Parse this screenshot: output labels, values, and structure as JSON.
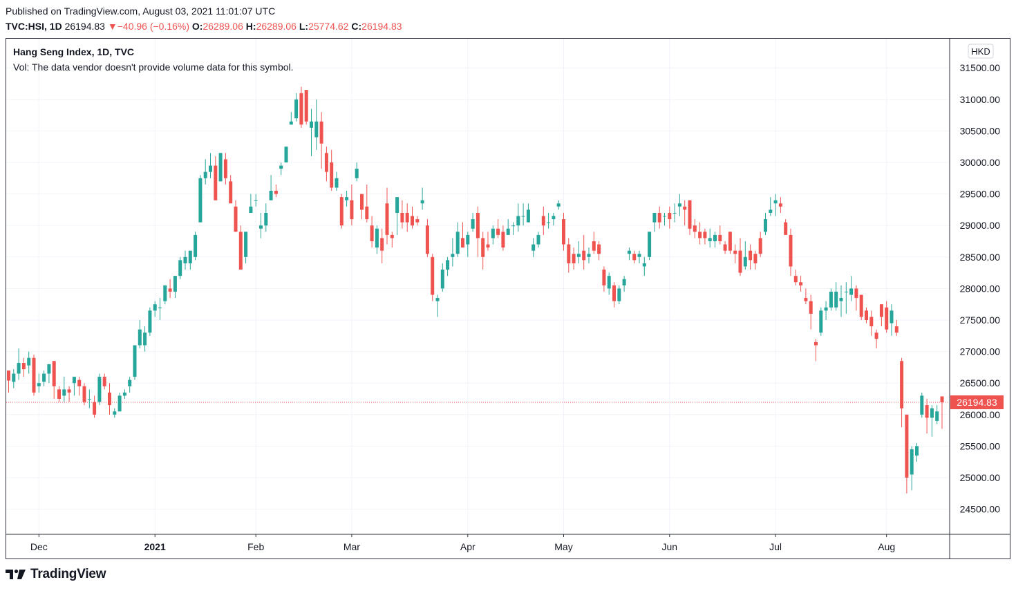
{
  "header": {
    "published": "Published on TradingView.com, August 03, 2021 11:01:07 UTC",
    "symbol": "TVC:HSI, 1D",
    "last": "26194.83",
    "arrow": "▼",
    "change": "−40.96 (−0.16%)",
    "o_label": "O:",
    "o_value": "26289.06",
    "h_label": "H:",
    "h_value": "26289.06",
    "l_label": "L:",
    "l_value": "25774.62",
    "c_label": "C:",
    "c_value": "26194.83"
  },
  "legend": {
    "title": "Hang Seng Index, 1D, TVC",
    "vol": "Vol: The data vendor doesn't provide volume data for this symbol."
  },
  "footer": {
    "logo_text": "TradingView",
    "logo_icon": "tradingview-logo-icon"
  },
  "colors": {
    "up": "#26a69a",
    "down": "#ef5350",
    "grid": "#f0f3fa",
    "axis": "#2a2e39",
    "last_price": "#ef5350"
  },
  "chart_data": {
    "type": "candlestick",
    "title": "Hang Seng Index, 1D, TVC",
    "currency": "HKD",
    "ylim": [
      24150,
      31850
    ],
    "y_ticks": [
      24500,
      25000,
      25500,
      26000,
      26500,
      27000,
      27500,
      28000,
      28500,
      29000,
      29500,
      30000,
      30500,
      31000,
      31500
    ],
    "y_tick_labels": [
      "24500.00",
      "25000.00",
      "25500.00",
      "26000.00",
      "26500.00",
      "27000.00",
      "27500.00",
      "28000.00",
      "28500.00",
      "29000.00",
      "29500.00",
      "30000.00",
      "30500.00",
      "31000.00",
      "31500.00"
    ],
    "x_ticks": [
      {
        "label": "Dec",
        "bold": false,
        "bar": 6
      },
      {
        "label": "2021",
        "bold": true,
        "bar": 29
      },
      {
        "label": "Feb",
        "bold": false,
        "bar": 49
      },
      {
        "label": "Mar",
        "bold": false,
        "bar": 68
      },
      {
        "label": "Apr",
        "bold": false,
        "bar": 91
      },
      {
        "label": "May",
        "bold": false,
        "bar": 110
      },
      {
        "label": "Jun",
        "bold": false,
        "bar": 131
      },
      {
        "label": "Jul",
        "bold": false,
        "bar": 152
      },
      {
        "label": "Aug",
        "bold": false,
        "bar": 174
      }
    ],
    "last_price": 26194.83,
    "last_price_label": "26194.83",
    "grid": true,
    "candles": [
      [
        26700,
        26700,
        26350,
        26540
      ],
      [
        26520,
        26720,
        26420,
        26650
      ],
      [
        26650,
        27050,
        26550,
        26820
      ],
      [
        26820,
        26900,
        26600,
        26720
      ],
      [
        26780,
        27000,
        26650,
        26900
      ],
      [
        26900,
        26950,
        26300,
        26350
      ],
      [
        26450,
        26650,
        26350,
        26500
      ],
      [
        26520,
        26700,
        26450,
        26650
      ],
      [
        26650,
        26800,
        26500,
        26800
      ],
      [
        26850,
        26850,
        26250,
        26450
      ],
      [
        26400,
        26450,
        26200,
        26250
      ],
      [
        26300,
        26600,
        26200,
        26400
      ],
      [
        26400,
        26450,
        26200,
        26350
      ],
      [
        26500,
        26600,
        26300,
        26600
      ],
      [
        26550,
        26600,
        26300,
        26450
      ],
      [
        26450,
        26500,
        26150,
        26200
      ],
      [
        26250,
        26400,
        26100,
        26250
      ],
      [
        26200,
        26300,
        25950,
        26000
      ],
      [
        26200,
        26650,
        26150,
        26600
      ],
      [
        26600,
        26650,
        26400,
        26450
      ],
      [
        26350,
        26500,
        26000,
        26150
      ],
      [
        26000,
        26100,
        25950,
        26050
      ],
      [
        26050,
        26350,
        26050,
        26300
      ],
      [
        26300,
        26400,
        26250,
        26350
      ],
      [
        26450,
        26600,
        26350,
        26550
      ],
      [
        26600,
        27100,
        26550,
        27100
      ],
      [
        27100,
        27500,
        27050,
        27350
      ],
      [
        27100,
        27400,
        27000,
        27300
      ],
      [
        27300,
        27700,
        27250,
        27650
      ],
      [
        27650,
        27800,
        27550,
        27750
      ],
      [
        27700,
        27850,
        27500,
        27700
      ],
      [
        27800,
        28050,
        27750,
        28050
      ],
      [
        28000,
        28150,
        27850,
        27950
      ],
      [
        27950,
        28200,
        27850,
        28200
      ],
      [
        28200,
        28500,
        28150,
        28450
      ],
      [
        28400,
        28600,
        28300,
        28500
      ],
      [
        28400,
        28550,
        28300,
        28600
      ],
      [
        28500,
        28900,
        28450,
        28850
      ],
      [
        29050,
        29800,
        29050,
        29750
      ],
      [
        29750,
        30050,
        29650,
        29850
      ],
      [
        29850,
        30150,
        29750,
        29950
      ],
      [
        29950,
        30100,
        29400,
        29400
      ],
      [
        29700,
        30150,
        29700,
        30150
      ],
      [
        30050,
        30150,
        29650,
        29750
      ],
      [
        29700,
        29800,
        29400,
        29350
      ],
      [
        29300,
        29400,
        28900,
        28900
      ],
      [
        28900,
        29000,
        28300,
        28300
      ],
      [
        28500,
        28900,
        28400,
        28900
      ],
      [
        29200,
        29500,
        29200,
        29300
      ],
      [
        29400,
        29500,
        29300,
        29400
      ],
      [
        28950,
        29200,
        28800,
        29000
      ],
      [
        29000,
        29350,
        28900,
        29200
      ],
      [
        29400,
        29800,
        29400,
        29550
      ],
      [
        29550,
        29650,
        29450,
        29500
      ],
      [
        29900,
        30000,
        29800,
        29950
      ],
      [
        30000,
        30250,
        30000,
        30250
      ],
      [
        30600,
        30800,
        30600,
        30650
      ],
      [
        30700,
        31100,
        30650,
        31000
      ],
      [
        31100,
        31200,
        30550,
        30600
      ],
      [
        31150,
        31150,
        30600,
        30650
      ],
      [
        30550,
        30850,
        30100,
        30650
      ],
      [
        30400,
        31000,
        30200,
        30650
      ],
      [
        30650,
        30800,
        29900,
        30300
      ],
      [
        30150,
        30250,
        29700,
        29850
      ],
      [
        30000,
        30200,
        29550,
        29600
      ],
      [
        29600,
        29850,
        29550,
        29750
      ],
      [
        29450,
        29500,
        28950,
        29000
      ],
      [
        29400,
        29550,
        29300,
        29450
      ],
      [
        29400,
        29650,
        29000,
        29100
      ],
      [
        29750,
        30000,
        29700,
        29900
      ],
      [
        29500,
        29500,
        29100,
        29250
      ],
      [
        29300,
        29650,
        29050,
        29100
      ],
      [
        29000,
        29150,
        28650,
        28750
      ],
      [
        28650,
        29000,
        28550,
        28950
      ],
      [
        28800,
        28950,
        28400,
        28600
      ],
      [
        29350,
        29600,
        28700,
        28850
      ],
      [
        28850,
        28900,
        28650,
        28800
      ],
      [
        29200,
        29450,
        28850,
        29450
      ],
      [
        29200,
        29400,
        28950,
        29050
      ],
      [
        29200,
        29350,
        28900,
        29050
      ],
      [
        29150,
        29300,
        28950,
        29000
      ],
      [
        29100,
        29150,
        29000,
        29050
      ],
      [
        29350,
        29600,
        29250,
        29400
      ],
      [
        29000,
        29100,
        28500,
        28550
      ],
      [
        28500,
        28550,
        27800,
        27900
      ],
      [
        27800,
        27900,
        27550,
        27850
      ],
      [
        28000,
        28400,
        27950,
        28300
      ],
      [
        28300,
        28500,
        28200,
        28450
      ],
      [
        28500,
        28800,
        28350,
        28550
      ],
      [
        28550,
        29050,
        28500,
        28900
      ],
      [
        28800,
        29050,
        28650,
        28650
      ],
      [
        28700,
        28900,
        28500,
        28850
      ],
      [
        28950,
        29200,
        28900,
        29100
      ],
      [
        29200,
        29300,
        28500,
        28800
      ],
      [
        28800,
        28900,
        28300,
        28500
      ],
      [
        28700,
        28900,
        28600,
        28650
      ],
      [
        28800,
        29000,
        28700,
        28950
      ],
      [
        28950,
        29100,
        28800,
        28850
      ],
      [
        28900,
        29000,
        28600,
        28650
      ],
      [
        28850,
        29100,
        28850,
        28950
      ],
      [
        29000,
        29050,
        28850,
        29000
      ],
      [
        29000,
        29350,
        28900,
        29150
      ],
      [
        29150,
        29350,
        29000,
        29150
      ],
      [
        29050,
        29350,
        29050,
        29250
      ],
      [
        28600,
        28800,
        28500,
        28700
      ],
      [
        28700,
        28900,
        28650,
        28850
      ],
      [
        29150,
        29300,
        28850,
        29000
      ],
      [
        29050,
        29200,
        28950,
        29050
      ],
      [
        29100,
        29200,
        29000,
        29150
      ],
      [
        29300,
        29400,
        29250,
        29350
      ],
      [
        29100,
        29200,
        28600,
        28700
      ],
      [
        28700,
        28800,
        28250,
        28400
      ],
      [
        28550,
        28650,
        28300,
        28400
      ],
      [
        28500,
        28750,
        28400,
        28550
      ],
      [
        28600,
        28850,
        28300,
        28450
      ],
      [
        28500,
        28650,
        28400,
        28550
      ],
      [
        28750,
        28900,
        28550,
        28600
      ],
      [
        28700,
        28750,
        28450,
        28550
      ],
      [
        28300,
        28350,
        27950,
        28050
      ],
      [
        28000,
        28250,
        27900,
        28200
      ],
      [
        28050,
        28100,
        27700,
        27800
      ],
      [
        27800,
        28050,
        27750,
        28000
      ],
      [
        28050,
        28200,
        27950,
        28150
      ],
      [
        28550,
        28650,
        28450,
        28600
      ],
      [
        28550,
        28600,
        28400,
        28450
      ],
      [
        28500,
        28600,
        28400,
        28550
      ],
      [
        28350,
        28500,
        28200,
        28400
      ],
      [
        28500,
        28900,
        28450,
        28900
      ],
      [
        29050,
        29200,
        28900,
        29200
      ],
      [
        29200,
        29300,
        28950,
        29050
      ],
      [
        29150,
        29200,
        29000,
        29150
      ],
      [
        29200,
        29300,
        28950,
        29100
      ],
      [
        29200,
        29350,
        29050,
        29200
      ],
      [
        29300,
        29500,
        29150,
        29350
      ],
      [
        29300,
        29400,
        29000,
        29250
      ],
      [
        29400,
        29400,
        28850,
        28950
      ],
      [
        29000,
        29100,
        28800,
        28900
      ],
      [
        28900,
        29050,
        28700,
        28800
      ],
      [
        28900,
        28950,
        28700,
        28800
      ],
      [
        28750,
        28950,
        28650,
        28800
      ],
      [
        28750,
        28900,
        28650,
        28850
      ],
      [
        28850,
        29000,
        28700,
        28750
      ],
      [
        28700,
        28750,
        28550,
        28600
      ],
      [
        28900,
        28900,
        28550,
        28600
      ],
      [
        28600,
        28700,
        28400,
        28550
      ],
      [
        28600,
        28800,
        28200,
        28250
      ],
      [
        28350,
        28750,
        28300,
        28500
      ],
      [
        28600,
        28700,
        28300,
        28450
      ],
      [
        28550,
        28600,
        28300,
        28400
      ],
      [
        28800,
        28900,
        28500,
        28550
      ],
      [
        28900,
        29200,
        28850,
        29100
      ],
      [
        29200,
        29450,
        29150,
        29250
      ],
      [
        29350,
        29500,
        29150,
        29400
      ],
      [
        29350,
        29450,
        29200,
        29300
      ],
      [
        29050,
        29100,
        28850,
        28850
      ],
      [
        28850,
        28950,
        28200,
        28350
      ],
      [
        28200,
        28300,
        28050,
        28100
      ],
      [
        28100,
        28200,
        27950,
        28050
      ],
      [
        27850,
        28000,
        27750,
        27800
      ],
      [
        27800,
        27900,
        27350,
        27600
      ],
      [
        27150,
        27200,
        26850,
        27100
      ],
      [
        27300,
        27700,
        27250,
        27650
      ],
      [
        27650,
        27800,
        27500,
        27700
      ],
      [
        27700,
        28000,
        27650,
        27950
      ],
      [
        27700,
        28100,
        27650,
        27950
      ],
      [
        27800,
        28050,
        27550,
        27850
      ],
      [
        27950,
        28100,
        27600,
        27950
      ],
      [
        27900,
        28200,
        27800,
        28000
      ],
      [
        28000,
        28050,
        27650,
        27850
      ],
      [
        27900,
        27900,
        27500,
        27550
      ],
      [
        27650,
        27700,
        27450,
        27500
      ],
      [
        27550,
        27650,
        27250,
        27400
      ],
      [
        27300,
        27350,
        27050,
        27200
      ],
      [
        27750,
        27750,
        27400,
        27550
      ],
      [
        27700,
        27800,
        27300,
        27350
      ],
      [
        27450,
        27750,
        27250,
        27650
      ],
      [
        27400,
        27500,
        27250,
        27300
      ],
      [
        26850,
        26900,
        25800,
        26100
      ],
      [
        26000,
        26000,
        24750,
        25000
      ],
      [
        25050,
        25500,
        24800,
        25450
      ],
      [
        25350,
        25550,
        25250,
        25500
      ],
      [
        26000,
        26350,
        25950,
        26300
      ],
      [
        26150,
        26250,
        25700,
        25950
      ],
      [
        25950,
        26150,
        25650,
        26100
      ],
      [
        25900,
        26150,
        25850,
        26050
      ],
      [
        26289.06,
        26289.06,
        25774.62,
        26194.83
      ]
    ]
  }
}
